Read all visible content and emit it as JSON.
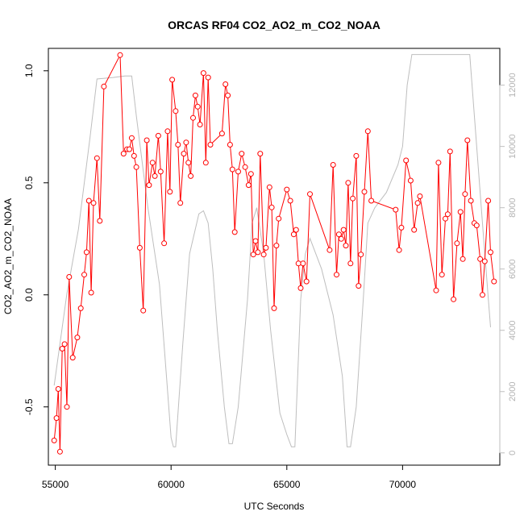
{
  "chart_data": {
    "type": "line",
    "title": "ORCAS RF04 CO2_AO2_m_CO2_NOAA",
    "xlabel": "UTC Seconds",
    "ylabel": "CO2_AO2_m_CO2_NOAA",
    "xlim": [
      54700,
      74200
    ],
    "ylim": [
      -0.76,
      1.1
    ],
    "y2lim": [
      -400,
      13200
    ],
    "x_ticks": [
      55000,
      60000,
      65000,
      70000
    ],
    "y_ticks": [
      -0.5,
      0.0,
      0.5,
      1.0
    ],
    "y_tick_labels": [
      "-0.5",
      "0.0",
      "0.5",
      "1.0"
    ],
    "y2_ticks": [
      0,
      2000,
      4000,
      6000,
      8000,
      10000,
      12000
    ],
    "colors": {
      "primary": "#ff0000",
      "secondary": "#bebebe"
    },
    "series": [
      {
        "axis": "left",
        "style": "line+open-circles",
        "color": "#ff0000",
        "points": [
          [
            54950,
            -0.65
          ],
          [
            55050,
            -0.55
          ],
          [
            55130,
            -0.42
          ],
          [
            55200,
            -0.7
          ],
          [
            55300,
            -0.24
          ],
          [
            55400,
            -0.22
          ],
          [
            55500,
            -0.5
          ],
          [
            55600,
            0.08
          ],
          [
            55750,
            -0.28
          ],
          [
            55950,
            -0.19
          ],
          [
            56100,
            -0.06
          ],
          [
            56250,
            0.09
          ],
          [
            56350,
            0.19
          ],
          [
            56450,
            0.42
          ],
          [
            56550,
            0.01
          ],
          [
            56650,
            0.41
          ],
          [
            56800,
            0.61
          ],
          [
            56920,
            0.33
          ],
          [
            57100,
            0.93
          ],
          [
            57800,
            1.07
          ],
          [
            57950,
            0.63
          ],
          [
            58100,
            0.65
          ],
          [
            58200,
            0.65
          ],
          [
            58300,
            0.7
          ],
          [
            58400,
            0.62
          ],
          [
            58500,
            0.57
          ],
          [
            58650,
            0.21
          ],
          [
            58800,
            -0.07
          ],
          [
            58950,
            0.69
          ],
          [
            59050,
            0.49
          ],
          [
            59200,
            0.59
          ],
          [
            59300,
            0.53
          ],
          [
            59450,
            0.71
          ],
          [
            59550,
            0.55
          ],
          [
            59700,
            0.23
          ],
          [
            59850,
            0.73
          ],
          [
            59950,
            0.46
          ],
          [
            60050,
            0.96
          ],
          [
            60200,
            0.82
          ],
          [
            60300,
            0.67
          ],
          [
            60400,
            0.41
          ],
          [
            60550,
            0.63
          ],
          [
            60650,
            0.68
          ],
          [
            60750,
            0.59
          ],
          [
            60850,
            0.53
          ],
          [
            60950,
            0.79
          ],
          [
            61050,
            0.89
          ],
          [
            61150,
            0.84
          ],
          [
            61250,
            0.76
          ],
          [
            61400,
            0.99
          ],
          [
            61500,
            0.59
          ],
          [
            61600,
            0.97
          ],
          [
            61700,
            0.67
          ],
          [
            62200,
            0.72
          ],
          [
            62350,
            0.94
          ],
          [
            62450,
            0.89
          ],
          [
            62550,
            0.67
          ],
          [
            62650,
            0.56
          ],
          [
            62750,
            0.28
          ],
          [
            62900,
            0.55
          ],
          [
            63050,
            0.63
          ],
          [
            63200,
            0.57
          ],
          [
            63350,
            0.49
          ],
          [
            63450,
            0.54
          ],
          [
            63550,
            0.18
          ],
          [
            63650,
            0.24
          ],
          [
            63750,
            0.19
          ],
          [
            63850,
            0.63
          ],
          [
            64000,
            0.18
          ],
          [
            64100,
            0.21
          ],
          [
            64250,
            0.48
          ],
          [
            64350,
            0.39
          ],
          [
            64450,
            -0.06
          ],
          [
            64550,
            0.22
          ],
          [
            64650,
            0.34
          ],
          [
            65000,
            0.47
          ],
          [
            65150,
            0.42
          ],
          [
            65300,
            0.27
          ],
          [
            65400,
            0.29
          ],
          [
            65500,
            0.14
          ],
          [
            65600,
            0.03
          ],
          [
            65700,
            0.14
          ],
          [
            65850,
            0.06
          ],
          [
            66000,
            0.45
          ],
          [
            66850,
            0.2
          ],
          [
            67000,
            0.58
          ],
          [
            67150,
            0.09
          ],
          [
            67250,
            0.27
          ],
          [
            67350,
            0.25
          ],
          [
            67450,
            0.29
          ],
          [
            67550,
            0.22
          ],
          [
            67650,
            0.5
          ],
          [
            67750,
            0.14
          ],
          [
            67850,
            0.43
          ],
          [
            68000,
            0.62
          ],
          [
            68100,
            0.04
          ],
          [
            68200,
            0.18
          ],
          [
            68350,
            0.46
          ],
          [
            68500,
            0.73
          ],
          [
            68650,
            0.42
          ],
          [
            69700,
            0.38
          ],
          [
            69850,
            0.2
          ],
          [
            69950,
            0.3
          ],
          [
            70150,
            0.6
          ],
          [
            70350,
            0.51
          ],
          [
            70500,
            0.29
          ],
          [
            70650,
            0.41
          ],
          [
            70750,
            0.44
          ],
          [
            71450,
            0.02
          ],
          [
            71550,
            0.59
          ],
          [
            71700,
            0.09
          ],
          [
            71850,
            0.34
          ],
          [
            71950,
            0.36
          ],
          [
            72050,
            0.64
          ],
          [
            72200,
            -0.02
          ],
          [
            72350,
            0.23
          ],
          [
            72500,
            0.37
          ],
          [
            72600,
            0.16
          ],
          [
            72700,
            0.45
          ],
          [
            72800,
            0.69
          ],
          [
            72950,
            0.42
          ],
          [
            73100,
            0.32
          ],
          [
            73200,
            0.31
          ],
          [
            73350,
            0.16
          ],
          [
            73450,
            0.0
          ],
          [
            73550,
            0.15
          ],
          [
            73700,
            0.42
          ],
          [
            73800,
            0.19
          ],
          [
            73950,
            0.06
          ]
        ]
      },
      {
        "axis": "right",
        "style": "line",
        "color": "#bebebe",
        "points": [
          [
            54950,
            2200
          ],
          [
            55500,
            5200
          ],
          [
            56000,
            7300
          ],
          [
            56500,
            10300
          ],
          [
            56800,
            12200
          ],
          [
            57500,
            12250
          ],
          [
            58000,
            12300
          ],
          [
            58300,
            12300
          ],
          [
            58500,
            11000
          ],
          [
            59000,
            8000
          ],
          [
            59500,
            5500
          ],
          [
            59800,
            2500
          ],
          [
            60000,
            500
          ],
          [
            60100,
            200
          ],
          [
            60200,
            200
          ],
          [
            60500,
            3500
          ],
          [
            60800,
            6500
          ],
          [
            61200,
            7800
          ],
          [
            61400,
            7900
          ],
          [
            61600,
            7500
          ],
          [
            61800,
            6000
          ],
          [
            62000,
            4000
          ],
          [
            62300,
            1500
          ],
          [
            62500,
            300
          ],
          [
            62650,
            300
          ],
          [
            62900,
            1500
          ],
          [
            63300,
            5000
          ],
          [
            63500,
            7500
          ],
          [
            63700,
            8000
          ],
          [
            64000,
            6500
          ],
          [
            64300,
            4000
          ],
          [
            64700,
            1300
          ],
          [
            65000,
            600
          ],
          [
            65200,
            200
          ],
          [
            65350,
            200
          ],
          [
            65600,
            5000
          ],
          [
            65800,
            6500
          ],
          [
            66000,
            7000
          ],
          [
            66500,
            6000
          ],
          [
            67000,
            4500
          ],
          [
            67400,
            2500
          ],
          [
            67600,
            200
          ],
          [
            67750,
            200
          ],
          [
            68000,
            1500
          ],
          [
            68300,
            5000
          ],
          [
            68500,
            7500
          ],
          [
            68800,
            8000
          ],
          [
            69300,
            8500
          ],
          [
            69800,
            9400
          ],
          [
            70000,
            10000
          ],
          [
            70200,
            12000
          ],
          [
            70400,
            13000
          ],
          [
            71000,
            13000
          ],
          [
            72500,
            13000
          ],
          [
            72900,
            13000
          ],
          [
            73200,
            10000
          ],
          [
            73500,
            7000
          ],
          [
            73800,
            4100
          ]
        ]
      }
    ]
  }
}
